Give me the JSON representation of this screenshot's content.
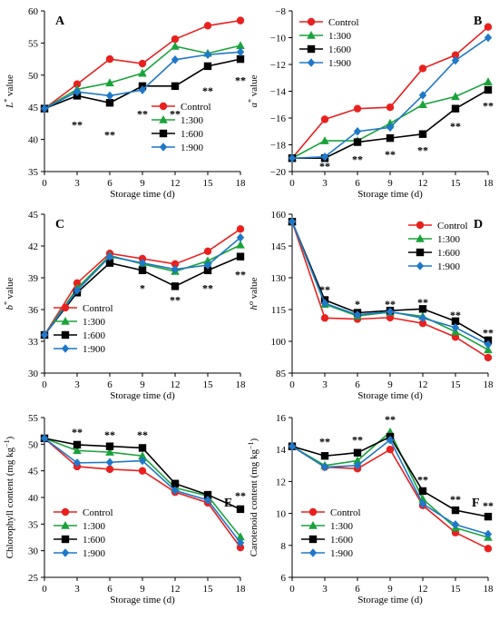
{
  "series_styles": [
    {
      "name": "Control",
      "color": "#e8211f",
      "marker": "circle"
    },
    {
      "name": "1:300",
      "color": "#1aa33b",
      "marker": "triangle"
    },
    {
      "name": "1:600",
      "color": "#000000",
      "marker": "square"
    },
    {
      "name": "1:900",
      "color": "#1f78c8",
      "marker": "diamond"
    }
  ],
  "chart_data": [
    {
      "type": "line",
      "panel": "A",
      "xlabel": "Storage time (d)",
      "ylabel_main": "L",
      "ylabel_sup": "*",
      "ylabel_rest": " value",
      "x": [
        0,
        3,
        6,
        9,
        12,
        15,
        18
      ],
      "xticks": [
        0,
        3,
        6,
        9,
        12,
        15,
        18
      ],
      "xlim": [
        0,
        18
      ],
      "ylim": [
        35,
        60
      ],
      "yticks": [
        35,
        40,
        45,
        50,
        55,
        60
      ],
      "legend_position": "bottom-right",
      "series": [
        {
          "name": "Control",
          "values": [
            44.8,
            48.6,
            52.5,
            51.8,
            55.6,
            57.7,
            58.5
          ]
        },
        {
          "name": "1:300",
          "values": [
            44.8,
            47.8,
            48.8,
            50.3,
            54.5,
            53.4,
            54.6
          ]
        },
        {
          "name": "1:600",
          "values": [
            44.8,
            46.8,
            45.7,
            48.3,
            48.3,
            51.4,
            52.5
          ]
        },
        {
          "name": "1:900",
          "values": [
            44.8,
            47.4,
            46.8,
            47.7,
            52.4,
            53.2,
            53.6
          ]
        }
      ],
      "annotations": [
        {
          "x": 3,
          "y": 42.3,
          "text": "**"
        },
        {
          "x": 6,
          "y": 40.7,
          "text": "**"
        },
        {
          "x": 9,
          "y": 44.0,
          "text": "**"
        },
        {
          "x": 12,
          "y": 44.0,
          "text": "**"
        },
        {
          "x": 15,
          "y": 47.6,
          "text": "**"
        },
        {
          "x": 18,
          "y": 49.2,
          "text": "**"
        }
      ]
    },
    {
      "type": "line",
      "panel": "B",
      "xlabel": "Storage time (d)",
      "ylabel_main": "a",
      "ylabel_sup": "*",
      "ylabel_rest": " value",
      "x": [
        0,
        3,
        6,
        9,
        12,
        15,
        18
      ],
      "xticks": [
        0,
        3,
        6,
        9,
        12,
        15,
        18
      ],
      "xlim": [
        0,
        18
      ],
      "ylim": [
        -20,
        -8
      ],
      "yticks": [
        -20,
        -18,
        -16,
        -14,
        -12,
        -10,
        -8
      ],
      "legend_position": "top-left",
      "series": [
        {
          "name": "Control",
          "values": [
            -19.0,
            -16.1,
            -15.3,
            -15.2,
            -12.3,
            -11.3,
            -9.2
          ]
        },
        {
          "name": "1:300",
          "values": [
            -19.0,
            -17.7,
            -17.7,
            -16.4,
            -15.0,
            -14.4,
            -13.3
          ]
        },
        {
          "name": "1:600",
          "values": [
            -19.0,
            -19.0,
            -17.8,
            -17.5,
            -17.2,
            -15.3,
            -13.9
          ]
        },
        {
          "name": "1:900",
          "values": [
            -19.0,
            -18.9,
            -17.0,
            -16.7,
            -14.3,
            -11.7,
            -10.0
          ]
        }
      ],
      "annotations": [
        {
          "x": 3,
          "y": -19.6,
          "text": "**"
        },
        {
          "x": 6,
          "y": -19.1,
          "text": "**"
        },
        {
          "x": 9,
          "y": -18.7,
          "text": "**"
        },
        {
          "x": 12,
          "y": -18.4,
          "text": "**"
        },
        {
          "x": 15,
          "y": -16.6,
          "text": "**"
        },
        {
          "x": 18,
          "y": -15.1,
          "text": "**"
        }
      ]
    },
    {
      "type": "line",
      "panel": "C",
      "xlabel": "Storage time (d)",
      "ylabel_main": "b",
      "ylabel_sup": "*",
      "ylabel_rest": " value",
      "x": [
        0,
        3,
        6,
        9,
        12,
        15,
        18
      ],
      "xticks": [
        0,
        3,
        6,
        9,
        12,
        15,
        18
      ],
      "xlim": [
        0,
        18
      ],
      "ylim": [
        30,
        45
      ],
      "yticks": [
        30,
        33,
        36,
        39,
        42,
        45
      ],
      "legend_position": "bottom-left",
      "series": [
        {
          "name": "Control",
          "values": [
            33.6,
            38.5,
            41.3,
            40.8,
            40.3,
            41.5,
            43.6
          ]
        },
        {
          "name": "1:300",
          "values": [
            33.6,
            38.0,
            41.1,
            40.3,
            39.6,
            40.6,
            42.1
          ]
        },
        {
          "name": "1:600",
          "values": [
            33.6,
            37.6,
            40.4,
            39.7,
            38.2,
            39.7,
            41.0
          ]
        },
        {
          "name": "1:900",
          "values": [
            33.6,
            37.8,
            41.0,
            40.4,
            39.8,
            40.2,
            42.8
          ]
        }
      ],
      "annotations": [
        {
          "x": 9,
          "y": 38.0,
          "text": "*"
        },
        {
          "x": 12,
          "y": 36.9,
          "text": "**"
        },
        {
          "x": 15,
          "y": 38.0,
          "text": "**"
        },
        {
          "x": 18,
          "y": 39.3,
          "text": "**"
        }
      ]
    },
    {
      "type": "line",
      "panel": "D",
      "xlabel": "Storage time (d)",
      "ylabel_main": "h",
      "ylabel_sup": "o",
      "ylabel_rest": " value",
      "x": [
        0,
        3,
        6,
        9,
        12,
        15,
        18
      ],
      "xticks": [
        0,
        3,
        6,
        9,
        12,
        15,
        18
      ],
      "xlim": [
        0,
        18
      ],
      "ylim": [
        85,
        160
      ],
      "yticks": [
        85,
        100,
        115,
        130,
        145,
        160
      ],
      "legend_position": "top-right",
      "series": [
        {
          "name": "Control",
          "values": [
            156.5,
            111.0,
            110.5,
            111.2,
            108.5,
            102.0,
            92.3
          ]
        },
        {
          "name": "1:300",
          "values": [
            156.5,
            117.5,
            112.0,
            113.8,
            111.8,
            104.5,
            96.0
          ]
        },
        {
          "name": "1:600",
          "values": [
            156.5,
            119.5,
            113.5,
            114.5,
            115.3,
            109.5,
            100.5
          ]
        },
        {
          "name": "1:900",
          "values": [
            156.5,
            118.0,
            112.5,
            114.0,
            111.0,
            106.5,
            98.5
          ]
        }
      ],
      "annotations": [
        {
          "x": 3,
          "y": 124.5,
          "text": "**"
        },
        {
          "x": 6,
          "y": 117.5,
          "text": "*"
        },
        {
          "x": 9,
          "y": 117.5,
          "text": "**"
        },
        {
          "x": 12,
          "y": 118.5,
          "text": "**"
        },
        {
          "x": 15,
          "y": 112.5,
          "text": "**"
        },
        {
          "x": 18,
          "y": 104.0,
          "text": "**"
        }
      ]
    },
    {
      "type": "line",
      "panel": "E",
      "xlabel": "Storage time (d)",
      "ylabel_main": "Chlorophyll content (mg kg",
      "ylabel_sup": "−1",
      "ylabel_rest": ")",
      "x": [
        0,
        3,
        6,
        9,
        12,
        15,
        18
      ],
      "xticks": [
        0,
        3,
        6,
        9,
        12,
        15,
        18
      ],
      "xlim": [
        0,
        18
      ],
      "ylim": [
        25,
        55
      ],
      "yticks": [
        25,
        30,
        35,
        40,
        45,
        50,
        55
      ],
      "legend_position": "bottom-left",
      "series": [
        {
          "name": "Control",
          "values": [
            51.1,
            45.8,
            45.3,
            45.0,
            41.0,
            39.0,
            30.6
          ]
        },
        {
          "name": "1:300",
          "values": [
            51.1,
            48.8,
            48.5,
            47.8,
            41.8,
            40.3,
            32.6
          ]
        },
        {
          "name": "1:600",
          "values": [
            51.1,
            49.9,
            49.6,
            49.3,
            42.6,
            40.5,
            37.8
          ]
        },
        {
          "name": "1:900",
          "values": [
            51.1,
            46.5,
            46.6,
            46.9,
            41.3,
            39.5,
            31.5
          ]
        }
      ],
      "annotations": [
        {
          "x": 3,
          "y": 52.3,
          "text": "**"
        },
        {
          "x": 6,
          "y": 51.8,
          "text": "**"
        },
        {
          "x": 9,
          "y": 51.8,
          "text": "**"
        },
        {
          "x": 18,
          "y": 40.3,
          "text": "**"
        }
      ]
    },
    {
      "type": "line",
      "panel": "F",
      "xlabel": "Storage time (d)",
      "ylabel_main": "Carotenoid content (mg kg",
      "ylabel_sup": "−1",
      "ylabel_rest": ")",
      "x": [
        0,
        3,
        6,
        9,
        12,
        15,
        18
      ],
      "xticks": [
        0,
        3,
        6,
        9,
        12,
        15,
        18
      ],
      "xlim": [
        0,
        18
      ],
      "ylim": [
        6,
        16
      ],
      "yticks": [
        6,
        8,
        10,
        12,
        14,
        16
      ],
      "legend_position": "bottom-left",
      "series": [
        {
          "name": "Control",
          "values": [
            14.2,
            12.9,
            12.8,
            14.0,
            10.5,
            8.8,
            7.8
          ]
        },
        {
          "name": "1:300",
          "values": [
            14.2,
            13.0,
            13.3,
            15.1,
            10.9,
            9.1,
            8.5
          ]
        },
        {
          "name": "1:600",
          "values": [
            14.2,
            13.6,
            13.8,
            14.8,
            11.4,
            10.2,
            9.8
          ]
        },
        {
          "name": "1:900",
          "values": [
            14.2,
            12.9,
            13.0,
            14.6,
            10.6,
            9.3,
            8.7
          ]
        }
      ],
      "annotations": [
        {
          "x": 3,
          "y": 14.5,
          "text": "**"
        },
        {
          "x": 6,
          "y": 14.6,
          "text": "**"
        },
        {
          "x": 9,
          "y": 15.9,
          "text": "**"
        },
        {
          "x": 12,
          "y": 12.1,
          "text": "**"
        },
        {
          "x": 15,
          "y": 10.9,
          "text": "**"
        },
        {
          "x": 18,
          "y": 10.5,
          "text": "**"
        }
      ]
    }
  ]
}
